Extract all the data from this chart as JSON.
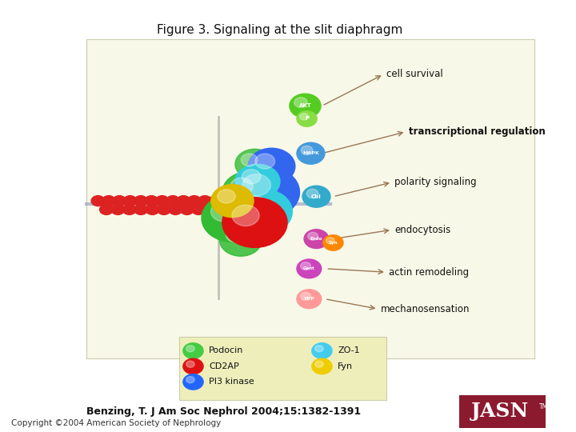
{
  "title": "Figure 3. Signaling at the slit diaphragm",
  "citation": "Benzing, T. J Am Soc Nephrol 2004;15:1382-1391",
  "copyright": "Copyright ©2004 American Society of Nephrology",
  "bg_color": "#FFFFFF",
  "jasn_bg": "#8B1A2E",
  "labels_right": [
    "cell survival",
    "transcriptional regulation",
    "polarity signaling",
    "endocytosis",
    "actin remodeling",
    "mechanosensation"
  ],
  "label_bold": [
    false,
    true,
    false,
    false,
    false,
    false
  ]
}
